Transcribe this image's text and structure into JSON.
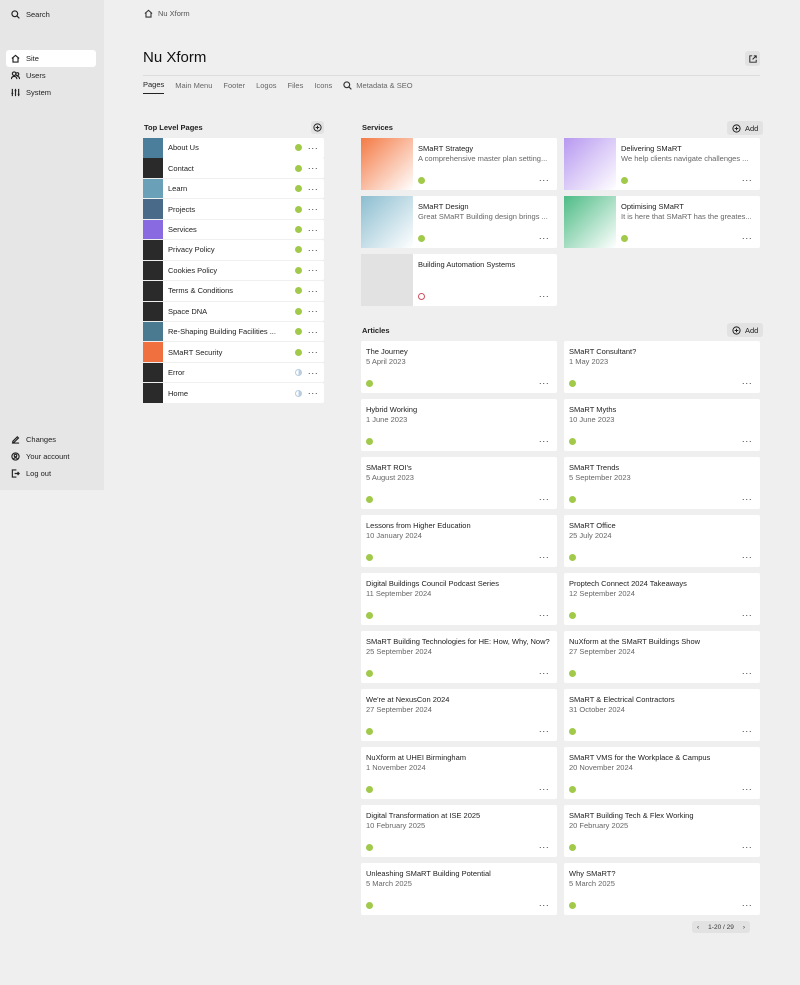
{
  "sidebar": {
    "search": "Search",
    "items": [
      {
        "label": "Site",
        "icon": "home-icon",
        "active": true
      },
      {
        "label": "Users",
        "icon": "users-icon"
      },
      {
        "label": "System",
        "icon": "sliders-icon"
      }
    ],
    "bottom": [
      {
        "label": "Changes",
        "icon": "pencil-icon"
      },
      {
        "label": "Your account",
        "icon": "account-icon"
      },
      {
        "label": "Log out",
        "icon": "logout-icon"
      }
    ]
  },
  "breadcrumb": "Nu Xform",
  "title": "Nu Xform",
  "tabs": [
    "Pages",
    "Main Menu",
    "Footer",
    "Logos",
    "Files",
    "Icons",
    "Metadata & SEO"
  ],
  "pages": {
    "title": "Top Level Pages",
    "items": [
      {
        "label": "About Us",
        "status": "listed",
        "thumb": "#4a7e9a"
      },
      {
        "label": "Contact",
        "status": "listed",
        "thumb": "#2a2a2a"
      },
      {
        "label": "Learn",
        "status": "listed",
        "thumb": "#6aa0b8"
      },
      {
        "label": "Projects",
        "status": "listed",
        "thumb": "#4a6a8a"
      },
      {
        "label": "Services",
        "status": "listed",
        "thumb": "#8a6ae0"
      },
      {
        "label": "Privacy Policy",
        "status": "listed",
        "thumb": "#2a2a2a"
      },
      {
        "label": "Cookies Policy",
        "status": "listed",
        "thumb": "#2a2a2a"
      },
      {
        "label": "Terms & Conditions",
        "status": "listed",
        "thumb": "#2a2a2a"
      },
      {
        "label": "Space DNA",
        "status": "listed",
        "thumb": "#2a2a2a"
      },
      {
        "label": "Re-Shaping Building Facilities ...",
        "status": "listed",
        "thumb": "#4a7a90"
      },
      {
        "label": "SMaRT Security",
        "status": "listed",
        "thumb": "#f07040"
      },
      {
        "label": "Error",
        "status": "unlisted",
        "thumb": "#2a2a2a"
      },
      {
        "label": "Home",
        "status": "unlisted",
        "thumb": "#2a2a2a"
      }
    ]
  },
  "services": {
    "title": "Services",
    "add": "Add",
    "items": [
      {
        "title": "SMaRT Strategy",
        "text": "A comprehensive master plan setting...",
        "status": "listed",
        "color": "#f47a45"
      },
      {
        "title": "Delivering SMaRT",
        "text": "We help clients navigate challenges ...",
        "status": "listed",
        "color": "#b798f0"
      },
      {
        "title": "SMaRT Design",
        "text": "Great SMaRT Building design brings ...",
        "status": "listed",
        "color": "#8bbdd0"
      },
      {
        "title": "Optimising SMaRT",
        "text": "It is here that SMaRT has the greates...",
        "status": "listed",
        "color": "#4dbb85"
      },
      {
        "title": "Building Automation Systems",
        "text": "",
        "status": "draft",
        "color": "#e2e2e2"
      }
    ]
  },
  "articles": {
    "title": "Articles",
    "add": "Add",
    "items": [
      {
        "title": "The Journey",
        "date": "5 April 2023"
      },
      {
        "title": "SMaRT Consultant?",
        "date": "1 May 2023"
      },
      {
        "title": "Hybrid Working",
        "date": "1 June 2023"
      },
      {
        "title": "SMaRT Myths",
        "date": "10 June 2023"
      },
      {
        "title": "SMaRT ROI's",
        "date": "5 August 2023"
      },
      {
        "title": "SMaRT Trends",
        "date": "5 September 2023"
      },
      {
        "title": "Lessons from Higher Education",
        "date": "10 January 2024"
      },
      {
        "title": "SMaRT Office",
        "date": "25 July 2024"
      },
      {
        "title": "Digital Buildings Council Podcast Series",
        "date": "11 September 2024"
      },
      {
        "title": "Proptech Connect 2024 Takeaways",
        "date": "12 September 2024"
      },
      {
        "title": "SMaRT Building Technologies for HE: How, Why, Now?",
        "date": "25 September 2024"
      },
      {
        "title": "NuXform at the SMaRT Buildings Show",
        "date": "27 September 2024"
      },
      {
        "title": "We're at NexusCon 2024",
        "date": "27 September 2024"
      },
      {
        "title": "SMaRT & Electrical Contractors",
        "date": "31 October 2024"
      },
      {
        "title": "NuXform at UHEI Birmingham",
        "date": "1 November 2024"
      },
      {
        "title": "SMaRT VMS for the Workplace & Campus",
        "date": "20 November 2024"
      },
      {
        "title": "Digital Transformation at ISE 2025",
        "date": "10 February 2025"
      },
      {
        "title": "SMaRT Building Tech & Flex Working",
        "date": "20 February 2025"
      },
      {
        "title": "Unleashing SMaRT Building Potential",
        "date": "5 March 2025"
      },
      {
        "title": "Why SMaRT?",
        "date": "5 March 2025"
      }
    ]
  },
  "pagination": {
    "prev": "‹",
    "label": "1-20 / 29",
    "next": "›"
  },
  "colors": {
    "listed": "#a1c94a",
    "unlisted": "#b8cde0",
    "draft": "#d05060"
  }
}
